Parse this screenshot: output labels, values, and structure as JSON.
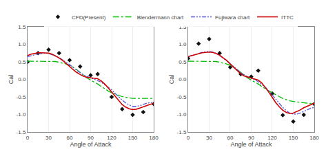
{
  "chart_data": [
    {
      "type": "line",
      "xlabel": "Angle of Attack",
      "ylabel": "Cal",
      "xlim": [
        0,
        180
      ],
      "ylim": [
        -1.5,
        1.5
      ],
      "xticks": [
        0,
        30,
        60,
        90,
        120,
        150,
        180
      ],
      "yticks": [
        -1.5,
        {
          "value": -1.0,
          "label": "-1.0"
        },
        -0.5,
        {
          "value": 0.0,
          "label": "0.0"
        },
        0.5,
        {
          "value": 1.0,
          "label": "1.0"
        },
        1.5
      ],
      "grid": "x",
      "legend": "top",
      "series": [
        {
          "name": "CFD(Present)",
          "type": "scatter",
          "marker": "diamond",
          "color": "#111111",
          "x": [
            0,
            15,
            30,
            45,
            60,
            75,
            90,
            100,
            120,
            135,
            150,
            165,
            180
          ],
          "values": [
            0.5,
            0.75,
            0.85,
            0.75,
            0.55,
            0.37,
            0.12,
            0.15,
            -0.5,
            -0.85,
            -1.01,
            -0.93,
            -0.7
          ]
        },
        {
          "name": "Blendermann chart",
          "type": "line",
          "line_style": "dashdot",
          "color": "#00bb00",
          "x": [
            0,
            5,
            10,
            15,
            20,
            25,
            30,
            35,
            40,
            45,
            50,
            55,
            60,
            65,
            70,
            75,
            80,
            85,
            90,
            95,
            100,
            105,
            110,
            115,
            120,
            125,
            130,
            135,
            140,
            145,
            150,
            155,
            160,
            165,
            170,
            175,
            180
          ],
          "values": [
            0.52,
            0.52,
            0.52,
            0.52,
            0.52,
            0.52,
            0.52,
            0.52,
            0.51,
            0.49,
            0.47,
            0.44,
            0.4,
            0.35,
            0.28,
            0.2,
            0.12,
            0.04,
            -0.02,
            -0.07,
            -0.13,
            -0.2,
            -0.27,
            -0.33,
            -0.38,
            -0.42,
            -0.46,
            -0.49,
            -0.51,
            -0.53,
            -0.54,
            -0.54,
            -0.54,
            -0.54,
            -0.54,
            -0.54,
            -0.54
          ]
        },
        {
          "name": "Fujiwara chart",
          "type": "line",
          "line_style": "dashdotdot",
          "color": "#5555dd",
          "x": [
            0,
            5,
            10,
            15,
            20,
            25,
            30,
            35,
            40,
            45,
            50,
            55,
            60,
            65,
            70,
            75,
            80,
            85,
            90,
            95,
            100,
            105,
            110,
            115,
            120,
            125,
            130,
            135,
            140,
            145,
            150,
            155,
            160,
            165,
            170,
            175,
            180
          ],
          "values": [
            0.65,
            0.68,
            0.71,
            0.73,
            0.74,
            0.75,
            0.74,
            0.71,
            0.67,
            0.62,
            0.56,
            0.49,
            0.42,
            0.34,
            0.26,
            0.19,
            0.13,
            0.08,
            0.04,
            0.01,
            -0.03,
            -0.08,
            -0.15,
            -0.22,
            -0.3,
            -0.4,
            -0.5,
            -0.59,
            -0.67,
            -0.73,
            -0.77,
            -0.77,
            -0.75,
            -0.71,
            -0.68,
            -0.66,
            -0.65
          ]
        },
        {
          "name": "ITTC",
          "type": "line",
          "line_style": "solid",
          "color": "#cc0000",
          "x": [
            0,
            5,
            10,
            15,
            20,
            25,
            30,
            35,
            40,
            45,
            50,
            55,
            60,
            65,
            70,
            75,
            80,
            85,
            90,
            95,
            100,
            105,
            110,
            115,
            120,
            125,
            130,
            135,
            140,
            145,
            150,
            155,
            160,
            165,
            170,
            175,
            180
          ],
          "values": [
            0.68,
            0.72,
            0.74,
            0.76,
            0.76,
            0.76,
            0.75,
            0.72,
            0.67,
            0.61,
            0.54,
            0.46,
            0.37,
            0.28,
            0.2,
            0.14,
            0.09,
            0.06,
            0.05,
            0.04,
            0.02,
            -0.04,
            -0.13,
            -0.24,
            -0.36,
            -0.5,
            -0.62,
            -0.72,
            -0.79,
            -0.84,
            -0.86,
            -0.85,
            -0.82,
            -0.78,
            -0.74,
            -0.71,
            -0.68
          ]
        }
      ]
    },
    {
      "type": "line",
      "xlabel": "Angle of Attack",
      "ylabel": "Cal",
      "xlim": [
        0,
        180
      ],
      "ylim": [
        -1.5,
        1.5
      ],
      "xticks": [
        0,
        30,
        60,
        90,
        120,
        150,
        180
      ],
      "yticks": [
        -1.5,
        {
          "value": -1.0,
          "label": "-1.0"
        },
        -0.5,
        {
          "value": 0.0,
          "label": "0.0"
        },
        0.5,
        {
          "value": 1.0,
          "label": "1.0"
        },
        1.5
      ],
      "grid": "x",
      "legend": "top",
      "series": [
        {
          "name": "CFD(Present)",
          "type": "scatter",
          "marker": "diamond",
          "color": "#111111",
          "x": [
            0,
            15,
            30,
            45,
            60,
            75,
            90,
            100,
            120,
            135,
            150,
            165,
            180
          ],
          "values": [
            0.6,
            1.02,
            1.15,
            0.75,
            0.35,
            0.15,
            0.08,
            0.25,
            -0.4,
            -1.02,
            -1.2,
            -1.01,
            -0.7
          ]
        },
        {
          "name": "Blendermann chart",
          "type": "line",
          "line_style": "dashdot",
          "color": "#00bb00",
          "x": [
            0,
            5,
            10,
            15,
            20,
            25,
            30,
            35,
            40,
            45,
            50,
            55,
            60,
            65,
            70,
            75,
            80,
            85,
            90,
            95,
            100,
            105,
            110,
            115,
            120,
            125,
            130,
            135,
            140,
            145,
            150,
            155,
            160,
            165,
            170,
            175,
            180
          ],
          "values": [
            0.52,
            0.52,
            0.52,
            0.52,
            0.52,
            0.52,
            0.52,
            0.52,
            0.51,
            0.49,
            0.47,
            0.44,
            0.4,
            0.35,
            0.28,
            0.2,
            0.12,
            0.04,
            -0.02,
            -0.07,
            -0.13,
            -0.2,
            -0.27,
            -0.33,
            -0.38,
            -0.44,
            -0.49,
            -0.54,
            -0.58,
            -0.61,
            -0.63,
            -0.64,
            -0.65,
            -0.66,
            -0.67,
            -0.68,
            -0.7
          ]
        },
        {
          "name": "Fujiwara chart",
          "type": "line",
          "line_style": "dashdotdot",
          "color": "#5555dd",
          "x": [
            0,
            5,
            10,
            15,
            20,
            25,
            30,
            35,
            40,
            45,
            50,
            55,
            60,
            65,
            70,
            75,
            80,
            85,
            90,
            95,
            100,
            105,
            110,
            115,
            120,
            125,
            130,
            135,
            140,
            145,
            150,
            155,
            160,
            165,
            170,
            175,
            180
          ],
          "values": [
            0.65,
            0.68,
            0.72,
            0.75,
            0.77,
            0.79,
            0.8,
            0.78,
            0.74,
            0.68,
            0.61,
            0.53,
            0.45,
            0.36,
            0.27,
            0.19,
            0.13,
            0.07,
            0.03,
            0.0,
            -0.07,
            -0.14,
            -0.22,
            -0.32,
            -0.44,
            -0.56,
            -0.68,
            -0.8,
            -0.89,
            -0.96,
            -0.99,
            -0.99,
            -0.96,
            -0.91,
            -0.86,
            -0.82,
            -0.8
          ]
        },
        {
          "name": "ITTC",
          "type": "line",
          "line_style": "solid",
          "color": "#cc0000",
          "x": [
            0,
            5,
            10,
            15,
            20,
            25,
            30,
            35,
            40,
            45,
            50,
            55,
            60,
            65,
            70,
            75,
            80,
            85,
            90,
            95,
            100,
            105,
            110,
            115,
            120,
            125,
            130,
            135,
            140,
            145,
            150,
            155,
            160,
            165,
            170,
            175,
            180
          ],
          "values": [
            0.65,
            0.68,
            0.71,
            0.73,
            0.76,
            0.77,
            0.78,
            0.77,
            0.74,
            0.69,
            0.62,
            0.54,
            0.44,
            0.34,
            0.24,
            0.16,
            0.1,
            0.07,
            0.05,
            0.02,
            -0.02,
            -0.1,
            -0.22,
            -0.36,
            -0.51,
            -0.66,
            -0.78,
            -0.88,
            -0.94,
            -0.97,
            -0.96,
            -0.92,
            -0.87,
            -0.81,
            -0.76,
            -0.72,
            -0.68
          ]
        }
      ]
    }
  ]
}
